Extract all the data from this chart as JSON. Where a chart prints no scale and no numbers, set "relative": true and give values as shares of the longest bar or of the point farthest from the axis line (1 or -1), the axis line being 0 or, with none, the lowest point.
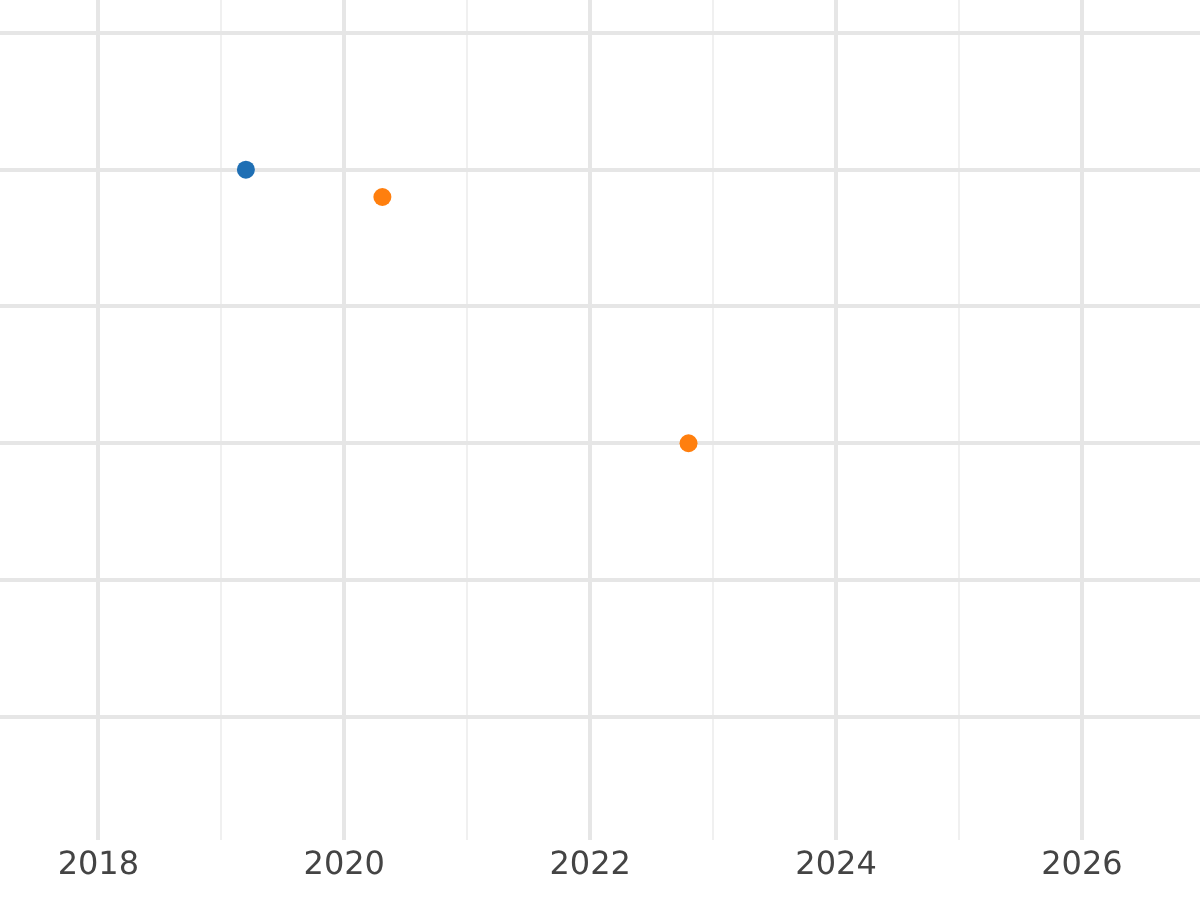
{
  "chart_data": {
    "type": "scatter",
    "relative": true,
    "marker": "circle",
    "grid": true,
    "tick_labels": "x",
    "xlim": [
      2017.2,
      2026.96
    ],
    "xticks": [
      2018,
      2020,
      2022,
      2024,
      2026
    ],
    "series": [
      {
        "color": "#1f6fb4",
        "x": [
          2019.2
        ],
        "values": [
          1
        ]
      },
      {
        "color": "#ff7f0e",
        "x": [
          2020.31,
          2022.8
        ],
        "values": [
          0.9,
          0
        ]
      }
    ]
  }
}
